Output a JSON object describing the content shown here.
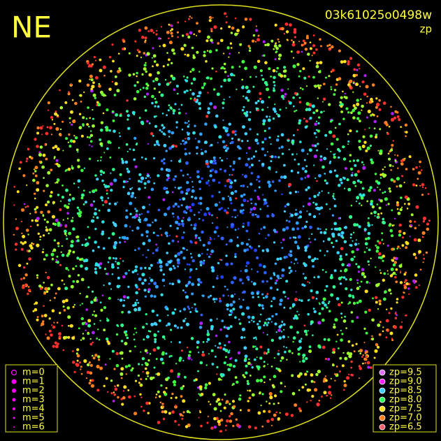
{
  "header": {
    "label": "NE",
    "id": "03k61025o0498w",
    "subtitle": "zp"
  },
  "legend_m": {
    "color": "#ff00ff",
    "items": [
      "m=0",
      "m=1",
      "m=2",
      "m=3",
      "m=4",
      "m=5",
      "m=6"
    ]
  },
  "legend_zp": {
    "items": [
      {
        "label": "zp=9.5",
        "color": "#e070ff"
      },
      {
        "label": "zp=9.0",
        "color": "#ff20ff"
      },
      {
        "label": "zp=8.5",
        "color": "#40d0ff"
      },
      {
        "label": "zp=8.0",
        "color": "#30ff60"
      },
      {
        "label": "zp=7.5",
        "color": "#ffe020"
      },
      {
        "label": "zp=7.0",
        "color": "#ff8020"
      },
      {
        "label": "zp=6.5",
        "color": "#ff6070"
      }
    ]
  }
}
